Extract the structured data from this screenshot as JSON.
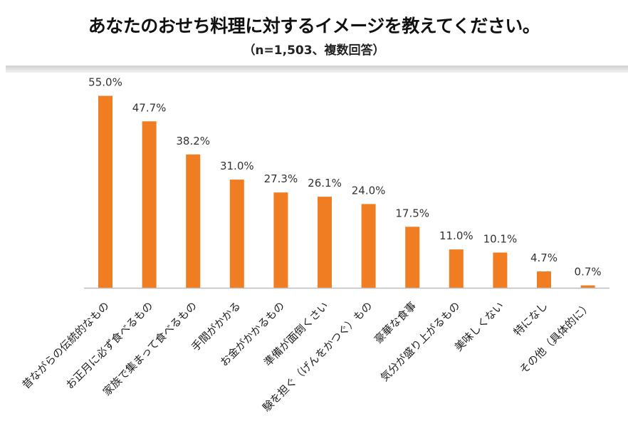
{
  "title": "あなたのおせち料理に対するイメージを教えてください。",
  "subtitle": "（n=1,503、複数回答）",
  "chart_data": {
    "type": "bar",
    "categories": [
      "昔ながらの伝統的なもの",
      "お正月に必ず食べるもの",
      "家族で集まって食べるもの",
      "手間がかかる",
      "お金がかかるもの",
      "準備が面倒くさい",
      "験を担ぐ（げんをかつぐ）もの",
      "豪華な食事",
      "気分が盛り上がるもの",
      "美味しくない",
      "特になし",
      "その他（具体的に）"
    ],
    "values": [
      55.0,
      47.7,
      38.2,
      31.0,
      27.3,
      26.1,
      24.0,
      17.5,
      11.0,
      10.1,
      4.7,
      0.7
    ],
    "value_labels": [
      "55.0%",
      "47.7%",
      "38.2%",
      "31.0%",
      "27.3%",
      "26.1%",
      "24.0%",
      "17.5%",
      "11.0%",
      "10.1%",
      "4.7%",
      "0.7%"
    ],
    "unit": "%",
    "ylim": [
      0,
      60
    ],
    "grid": false,
    "bar_color": "#f07d22"
  }
}
